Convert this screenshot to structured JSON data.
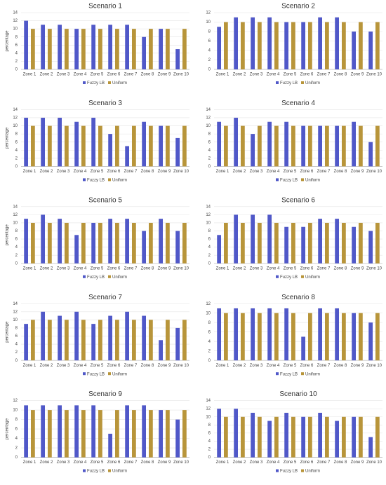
{
  "chart_data": [
    {
      "type": "bar",
      "title": "Scenario 1",
      "y_label": "percentage",
      "categories": [
        "Zone 1",
        "Zone 2",
        "Zone 3",
        "Zone 4",
        "Zone 5",
        "Zone 6",
        "Zone 7",
        "Zone 8",
        "Zone 9",
        "Zone 10"
      ],
      "series": [
        {
          "name": "Fuzzy LB",
          "color": "#5058c8",
          "values": [
            12,
            11,
            11,
            10,
            11,
            11,
            11,
            8,
            10,
            5
          ]
        },
        {
          "name": "Uniform",
          "color": "#b8953a",
          "values": [
            10,
            10,
            10,
            10,
            10,
            10,
            10,
            10,
            10,
            10
          ]
        }
      ],
      "ylim": [
        0,
        14
      ],
      "yticks": [
        0,
        2,
        4,
        6,
        8,
        10,
        12,
        14
      ],
      "grid": true
    },
    {
      "type": "bar",
      "title": "Scenario 2",
      "categories": [
        "Zone 1",
        "Zone 2",
        "Zone 3",
        "Zone 4",
        "Zone 5",
        "Zone 6",
        "Zone 7",
        "Zone 8",
        "Zone 9",
        "Zone 10"
      ],
      "series": [
        {
          "name": "Fuzzy LB",
          "color": "#5058c8",
          "values": [
            9,
            11,
            11,
            11,
            10,
            10,
            11,
            11,
            8,
            8
          ]
        },
        {
          "name": "Uniform",
          "color": "#b8953a",
          "values": [
            10,
            10,
            10,
            10,
            10,
            10,
            10,
            10,
            10,
            10
          ]
        }
      ],
      "ylim": [
        0,
        12
      ],
      "yticks": [
        0,
        2,
        4,
        6,
        8,
        10,
        12
      ],
      "grid": true
    },
    {
      "type": "bar",
      "title": "Scenario 3",
      "y_label": "percentage",
      "categories": [
        "Zone 1",
        "Zone 2",
        "Zone 3",
        "Zone 4",
        "Zone 5",
        "Zone 6",
        "Zone 7",
        "Zone 8",
        "Zone 9",
        "Zone 10"
      ],
      "series": [
        {
          "name": "Fuzzy LB",
          "color": "#5058c8",
          "values": [
            12,
            12,
            12,
            11,
            12,
            8,
            5,
            11,
            10,
            7
          ]
        },
        {
          "name": "Uniform",
          "color": "#b8953a",
          "values": [
            10,
            10,
            10,
            10,
            10,
            10,
            10,
            10,
            10,
            10
          ]
        }
      ],
      "ylim": [
        0,
        14
      ],
      "yticks": [
        0,
        2,
        4,
        6,
        8,
        10,
        12,
        14
      ],
      "grid": true
    },
    {
      "type": "bar",
      "title": "Scenario 4",
      "categories": [
        "Zone 1",
        "Zone 2",
        "Zone 3",
        "Zone 4",
        "Zone 5",
        "Zone 6",
        "Zone 7",
        "Zone 8",
        "Zone 9",
        "Zone 10"
      ],
      "series": [
        {
          "name": "Fuzzy LB",
          "color": "#5058c8",
          "values": [
            11,
            12,
            8,
            11,
            11,
            10,
            10,
            10,
            11,
            6
          ]
        },
        {
          "name": "Uniform",
          "color": "#b8953a",
          "values": [
            10,
            10,
            10,
            10,
            10,
            10,
            10,
            10,
            10,
            10
          ]
        }
      ],
      "ylim": [
        0,
        14
      ],
      "yticks": [
        0,
        2,
        4,
        6,
        8,
        10,
        12,
        14
      ],
      "grid": true
    },
    {
      "type": "bar",
      "title": "Scenario 5",
      "y_label": "percentage",
      "categories": [
        "Zone 1",
        "Zone 2",
        "Zone 3",
        "Zone 4",
        "Zone 5",
        "Zone 6",
        "Zone 7",
        "Zone 8",
        "Zone 9",
        "Zone 10"
      ],
      "series": [
        {
          "name": "Fuzzy LB",
          "color": "#5058c8",
          "values": [
            11,
            12,
            11,
            7,
            10,
            11,
            11,
            8,
            11,
            8
          ]
        },
        {
          "name": "Uniform",
          "color": "#b8953a",
          "values": [
            10,
            10,
            10,
            10,
            10,
            10,
            10,
            10,
            10,
            10
          ]
        }
      ],
      "ylim": [
        0,
        14
      ],
      "yticks": [
        0,
        2,
        4,
        6,
        8,
        10,
        12,
        14
      ],
      "grid": true
    },
    {
      "type": "bar",
      "title": "Scenario 6",
      "categories": [
        "Zone 1",
        "Zone 2",
        "Zone 3",
        "Zone 4",
        "Zone 5",
        "Zone 6",
        "Zone 7",
        "Zone 8",
        "Zone 9",
        "Zone 10"
      ],
      "series": [
        {
          "name": "Fuzzy LB",
          "color": "#5058c8",
          "values": [
            7,
            12,
            12,
            12,
            9,
            9,
            11,
            11,
            9,
            8
          ]
        },
        {
          "name": "Uniform",
          "color": "#b8953a",
          "values": [
            10,
            10,
            10,
            10,
            10,
            10,
            10,
            10,
            10,
            10
          ]
        }
      ],
      "ylim": [
        0,
        14
      ],
      "yticks": [
        0,
        2,
        4,
        6,
        8,
        10,
        12,
        14
      ],
      "grid": true
    },
    {
      "type": "bar",
      "title": "Scenario 7",
      "y_label": "percentage",
      "categories": [
        "Zone 1",
        "Zone 2",
        "Zone 3",
        "Zone 4",
        "Zone 5",
        "Zone 6",
        "Zone 7",
        "Zone 8",
        "Zone 9",
        "Zone 10"
      ],
      "series": [
        {
          "name": "Fuzzy LB",
          "color": "#5058c8",
          "values": [
            9,
            12,
            11,
            12,
            9,
            11,
            12,
            11,
            5,
            8
          ]
        },
        {
          "name": "Uniform",
          "color": "#b8953a",
          "values": [
            10,
            10,
            10,
            10,
            10,
            10,
            10,
            10,
            10,
            10
          ]
        }
      ],
      "ylim": [
        0,
        14
      ],
      "yticks": [
        0,
        2,
        4,
        6,
        8,
        10,
        12,
        14
      ],
      "grid": true
    },
    {
      "type": "bar",
      "title": "Scenario 8",
      "categories": [
        "Zone 1",
        "Zone 2",
        "Zone 3",
        "Zone 4",
        "Zone 5",
        "Zone 6",
        "Zone 7",
        "Zone 8",
        "Zone 9",
        "Zone 10"
      ],
      "series": [
        {
          "name": "Fuzzy LB",
          "color": "#5058c8",
          "values": [
            11,
            11,
            11,
            11,
            11,
            5,
            11,
            11,
            10,
            8
          ]
        },
        {
          "name": "Uniform",
          "color": "#b8953a",
          "values": [
            10,
            10,
            10,
            10,
            10,
            10,
            10,
            10,
            10,
            10
          ]
        }
      ],
      "ylim": [
        0,
        12
      ],
      "yticks": [
        0,
        2,
        4,
        6,
        8,
        10,
        12
      ],
      "grid": true
    },
    {
      "type": "bar",
      "title": "Scenario 9",
      "y_label": "percentage",
      "categories": [
        "Zone 1",
        "Zone 2",
        "Zone 3",
        "Zone 4",
        "Zone 5",
        "Zone 6",
        "Zone 7",
        "Zone 8",
        "Zone 9",
        "Zone 10"
      ],
      "series": [
        {
          "name": "Fuzzy LB",
          "color": "#5058c8",
          "values": [
            11,
            11,
            11,
            11,
            11,
            5,
            11,
            11,
            10,
            8
          ]
        },
        {
          "name": "Uniform",
          "color": "#b8953a",
          "values": [
            10,
            10,
            10,
            10,
            10,
            10,
            10,
            10,
            10,
            10
          ]
        }
      ],
      "ylim": [
        0,
        12
      ],
      "yticks": [
        0,
        2,
        4,
        6,
        8,
        10,
        12
      ],
      "grid": true
    },
    {
      "type": "bar",
      "title": "Scenario 10",
      "categories": [
        "Zone 1",
        "Zone 2",
        "Zone 3",
        "Zone 4",
        "Zone 5",
        "Zone 6",
        "Zone 7",
        "Zone 8",
        "Zone 9",
        "Zone 10"
      ],
      "series": [
        {
          "name": "Fuzzy LB",
          "color": "#5058c8",
          "values": [
            12,
            12,
            11,
            9,
            11,
            10,
            11,
            9,
            10,
            5
          ]
        },
        {
          "name": "Uniform",
          "color": "#b8953a",
          "values": [
            10,
            10,
            10,
            10,
            10,
            10,
            10,
            10,
            10,
            10
          ]
        }
      ],
      "ylim": [
        0,
        14
      ],
      "yticks": [
        0,
        2,
        4,
        6,
        8,
        10,
        12,
        14
      ],
      "grid": true
    }
  ]
}
